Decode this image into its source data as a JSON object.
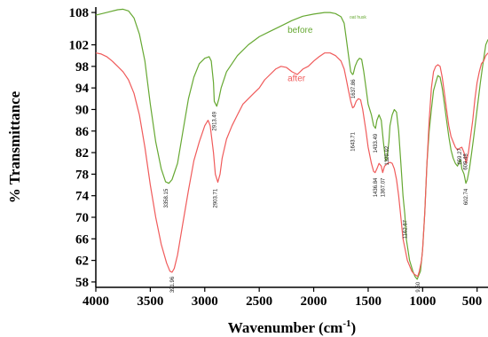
{
  "chart_data": {
    "type": "line",
    "xlabel": "Wavenumber (cm",
    "xlabel_sup": "-1",
    "xlabel_tail": ")",
    "ylabel": "% Transmittance",
    "xlim": [
      4000,
      400
    ],
    "ylim": [
      57,
      109
    ],
    "x_ticks": [
      4000,
      3500,
      3000,
      2500,
      2000,
      1500,
      1000,
      500
    ],
    "y_ticks": [
      58,
      62,
      66,
      70,
      74,
      78,
      82,
      86,
      90,
      94,
      98,
      102,
      108
    ],
    "grid": false,
    "colors": {
      "before": "#66a832",
      "after": "#f05b5b"
    },
    "corner_note": "oat husk",
    "series": [
      {
        "name": "before",
        "points": [
          [
            4000,
            107.5
          ],
          [
            3900,
            108
          ],
          [
            3800,
            108.5
          ],
          [
            3750,
            108.6
          ],
          [
            3700,
            108.3
          ],
          [
            3650,
            107
          ],
          [
            3600,
            104
          ],
          [
            3550,
            99
          ],
          [
            3500,
            91
          ],
          [
            3450,
            84
          ],
          [
            3400,
            79
          ],
          [
            3360,
            76.6
          ],
          [
            3330,
            76.3
          ],
          [
            3300,
            77
          ],
          [
            3250,
            80
          ],
          [
            3200,
            86
          ],
          [
            3150,
            92
          ],
          [
            3100,
            96
          ],
          [
            3050,
            98.5
          ],
          [
            3000,
            99.5
          ],
          [
            2960,
            99.8
          ],
          [
            2940,
            99
          ],
          [
            2920,
            95
          ],
          [
            2913,
            91.5
          ],
          [
            2890,
            90.6
          ],
          [
            2870,
            92
          ],
          [
            2850,
            94
          ],
          [
            2800,
            97
          ],
          [
            2700,
            100
          ],
          [
            2600,
            102
          ],
          [
            2500,
            103.5
          ],
          [
            2400,
            104.5
          ],
          [
            2300,
            105.5
          ],
          [
            2200,
            106.5
          ],
          [
            2100,
            107.3
          ],
          [
            2000,
            107.7
          ],
          [
            1900,
            108
          ],
          [
            1850,
            108
          ],
          [
            1800,
            107.8
          ],
          [
            1750,
            107.2
          ],
          [
            1720,
            106
          ],
          [
            1700,
            103
          ],
          [
            1680,
            100
          ],
          [
            1660,
            97
          ],
          [
            1643,
            96.5
          ],
          [
            1637,
            96.6
          ],
          [
            1620,
            98
          ],
          [
            1600,
            99
          ],
          [
            1580,
            99.5
          ],
          [
            1560,
            99.3
          ],
          [
            1540,
            97
          ],
          [
            1520,
            94
          ],
          [
            1500,
            91
          ],
          [
            1470,
            89
          ],
          [
            1450,
            87
          ],
          [
            1433,
            86.5
          ],
          [
            1420,
            88
          ],
          [
            1400,
            89
          ],
          [
            1380,
            88
          ],
          [
            1360,
            84
          ],
          [
            1340,
            80.5
          ],
          [
            1329,
            80.8
          ],
          [
            1310,
            84
          ],
          [
            1300,
            87
          ],
          [
            1280,
            89
          ],
          [
            1260,
            90
          ],
          [
            1240,
            89.5
          ],
          [
            1220,
            86
          ],
          [
            1200,
            80
          ],
          [
            1180,
            74
          ],
          [
            1163,
            70.5
          ],
          [
            1150,
            66
          ],
          [
            1120,
            62
          ],
          [
            1090,
            60
          ],
          [
            1070,
            59
          ],
          [
            1050,
            58.5
          ],
          [
            1040,
            59
          ],
          [
            1020,
            60
          ],
          [
            1000,
            64
          ],
          [
            980,
            71
          ],
          [
            960,
            80
          ],
          [
            940,
            86
          ],
          [
            920,
            90
          ],
          [
            900,
            93.5
          ],
          [
            880,
            95
          ],
          [
            860,
            96.3
          ],
          [
            840,
            96
          ],
          [
            820,
            94
          ],
          [
            800,
            91
          ],
          [
            780,
            88
          ],
          [
            760,
            85
          ],
          [
            740,
            82.5
          ],
          [
            720,
            81
          ],
          [
            700,
            80
          ],
          [
            680,
            79.5
          ],
          [
            660,
            80.5
          ],
          [
            650,
            80.6
          ],
          [
            640,
            79
          ],
          [
            620,
            78
          ],
          [
            603,
            76.3
          ],
          [
            590,
            77
          ],
          [
            570,
            79
          ],
          [
            550,
            82
          ],
          [
            530,
            85
          ],
          [
            500,
            90
          ],
          [
            470,
            95
          ],
          [
            450,
            98
          ],
          [
            420,
            102
          ],
          [
            400,
            103
          ]
        ]
      },
      {
        "name": "after",
        "points": [
          [
            4000,
            100.5
          ],
          [
            3950,
            100.3
          ],
          [
            3900,
            99.8
          ],
          [
            3850,
            99
          ],
          [
            3800,
            98
          ],
          [
            3750,
            97
          ],
          [
            3700,
            95.5
          ],
          [
            3650,
            93
          ],
          [
            3600,
            89
          ],
          [
            3550,
            83
          ],
          [
            3500,
            76
          ],
          [
            3450,
            70
          ],
          [
            3400,
            65
          ],
          [
            3350,
            61.5
          ],
          [
            3320,
            60
          ],
          [
            3300,
            59.8
          ],
          [
            3280,
            60.5
          ],
          [
            3250,
            63
          ],
          [
            3200,
            69
          ],
          [
            3150,
            75
          ],
          [
            3100,
            80.5
          ],
          [
            3050,
            84
          ],
          [
            3000,
            87
          ],
          [
            2970,
            88
          ],
          [
            2950,
            87
          ],
          [
            2920,
            82
          ],
          [
            2903,
            78
          ],
          [
            2880,
            76.5
          ],
          [
            2860,
            78
          ],
          [
            2840,
            81
          ],
          [
            2800,
            84.5
          ],
          [
            2750,
            87
          ],
          [
            2700,
            89
          ],
          [
            2650,
            91
          ],
          [
            2600,
            92
          ],
          [
            2550,
            93
          ],
          [
            2500,
            94
          ],
          [
            2450,
            95.5
          ],
          [
            2400,
            96.5
          ],
          [
            2350,
            97.5
          ],
          [
            2300,
            98
          ],
          [
            2250,
            97.8
          ],
          [
            2200,
            97
          ],
          [
            2150,
            96.5
          ],
          [
            2100,
            97.5
          ],
          [
            2050,
            98
          ],
          [
            2000,
            99
          ],
          [
            1950,
            99.8
          ],
          [
            1900,
            100.5
          ],
          [
            1850,
            100.5
          ],
          [
            1800,
            100
          ],
          [
            1750,
            99
          ],
          [
            1720,
            97.5
          ],
          [
            1700,
            95.5
          ],
          [
            1680,
            93.5
          ],
          [
            1660,
            91.5
          ],
          [
            1643,
            90.3
          ],
          [
            1630,
            90.5
          ],
          [
            1610,
            91.5
          ],
          [
            1590,
            92
          ],
          [
            1570,
            91.8
          ],
          [
            1550,
            90
          ],
          [
            1520,
            86
          ],
          [
            1500,
            83
          ],
          [
            1470,
            80
          ],
          [
            1450,
            78.5
          ],
          [
            1436,
            78.3
          ],
          [
            1420,
            79
          ],
          [
            1400,
            80
          ],
          [
            1380,
            79.5
          ],
          [
            1367,
            78.3
          ],
          [
            1350,
            79.5
          ],
          [
            1320,
            80
          ],
          [
            1300,
            80.2
          ],
          [
            1280,
            80
          ],
          [
            1260,
            79
          ],
          [
            1240,
            77
          ],
          [
            1220,
            74
          ],
          [
            1200,
            70
          ],
          [
            1180,
            66
          ],
          [
            1160,
            64
          ],
          [
            1140,
            62
          ],
          [
            1120,
            61
          ],
          [
            1100,
            60
          ],
          [
            1080,
            59.5
          ],
          [
            1060,
            59.2
          ],
          [
            1045,
            59
          ],
          [
            1030,
            60
          ],
          [
            1010,
            62
          ],
          [
            1000,
            64
          ],
          [
            980,
            71
          ],
          [
            960,
            80
          ],
          [
            940,
            88
          ],
          [
            920,
            94
          ],
          [
            900,
            97
          ],
          [
            880,
            98
          ],
          [
            860,
            98.3
          ],
          [
            840,
            98
          ],
          [
            820,
            96
          ],
          [
            800,
            93
          ],
          [
            780,
            90
          ],
          [
            760,
            87
          ],
          [
            740,
            85
          ],
          [
            720,
            84
          ],
          [
            700,
            83
          ],
          [
            680,
            82.5
          ],
          [
            660,
            82.8
          ],
          [
            640,
            83
          ],
          [
            620,
            82
          ],
          [
            600,
            80
          ],
          [
            580,
            82
          ],
          [
            560,
            85
          ],
          [
            540,
            88
          ],
          [
            520,
            92
          ],
          [
            500,
            95
          ],
          [
            480,
            97
          ],
          [
            460,
            98.5
          ],
          [
            440,
            99
          ],
          [
            420,
            100
          ],
          [
            400,
            100.5
          ]
        ]
      }
    ],
    "series_labels": [
      {
        "series": "before",
        "text": "before",
        "x": 2240,
        "y": 104.2
      },
      {
        "series": "after",
        "text": "after",
        "x": 2240,
        "y": 95.3
      }
    ],
    "peak_labels": [
      {
        "text": "3358.15",
        "x": 3358,
        "y": 75.3
      },
      {
        "text": "391.96",
        "x": 3300,
        "y": 59
      },
      {
        "text": "2913.49",
        "x": 2913,
        "y": 89.6
      },
      {
        "text": "2903.71",
        "x": 2903,
        "y": 75.3
      },
      {
        "text": "1637.86",
        "x": 1637,
        "y": 95.6
      },
      {
        "text": "1643.71",
        "x": 1643,
        "y": 85.8
      },
      {
        "text": "1433.49",
        "x": 1433,
        "y": 85.5
      },
      {
        "text": "1436.84",
        "x": 1436,
        "y": 77.3
      },
      {
        "text": "1329.92",
        "x": 1329,
        "y": 83.2
      },
      {
        "text": "1367.07",
        "x": 1367,
        "y": 77.3
      },
      {
        "text": "1162.67",
        "x": 1162,
        "y": 69.5
      },
      {
        "text": "9.60",
        "x": 1045,
        "y": 58
      },
      {
        "text": "659.27",
        "x": 659,
        "y": 82.8
      },
      {
        "text": "609.48",
        "x": 609,
        "y": 81.8
      },
      {
        "text": "602.74",
        "x": 602,
        "y": 75.3
      }
    ]
  }
}
